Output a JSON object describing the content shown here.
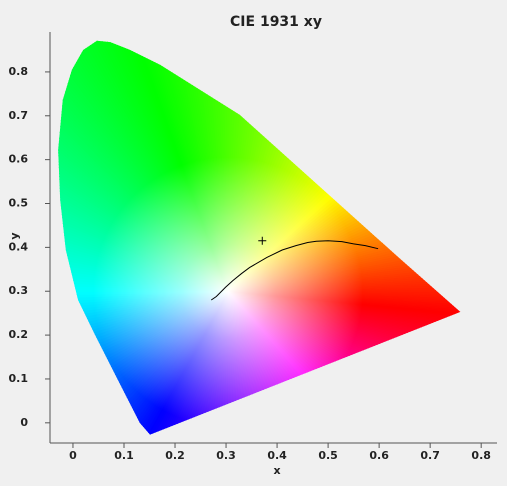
{
  "chart_data": {
    "type": "chromaticity",
    "title": "CIE 1931 xy",
    "x_label": "x",
    "y_label": "y",
    "xlim": [
      -0.045,
      0.831
    ],
    "ylim": [
      -0.046,
      0.891
    ],
    "xticks": [
      0,
      0.1,
      0.2,
      0.3,
      0.4,
      0.5,
      0.6,
      0.7,
      0.8
    ],
    "yticks": [
      0,
      0.1,
      0.2,
      0.3,
      0.4,
      0.5,
      0.6,
      0.7,
      0.8
    ],
    "locus": {
      "x": [
        0.151,
        0.131,
        0.088,
        0.043,
        0.01,
        -0.014,
        -0.025,
        -0.029,
        -0.02,
        -0.002,
        0.02,
        0.047,
        0.073,
        0.112,
        0.171,
        0.249,
        0.327,
        0.504,
        0.641,
        0.759
      ],
      "y": [
        -0.027,
        0.0,
        0.098,
        0.201,
        0.28,
        0.394,
        0.508,
        0.622,
        0.736,
        0.805,
        0.85,
        0.871,
        0.868,
        0.85,
        0.816,
        0.759,
        0.702,
        0.517,
        0.374,
        0.253
      ]
    },
    "planckian_locus": {
      "color": "#000000",
      "x": [
        0.271,
        0.281,
        0.299,
        0.313,
        0.33,
        0.346,
        0.38,
        0.41,
        0.437,
        0.46,
        0.477,
        0.5,
        0.527,
        0.55,
        0.573,
        0.598
      ],
      "y": [
        0.28,
        0.288,
        0.309,
        0.324,
        0.34,
        0.354,
        0.377,
        0.394,
        0.404,
        0.411,
        0.414,
        0.415,
        0.413,
        0.408,
        0.404,
        0.397
      ]
    },
    "white_point": {
      "x": 0.371,
      "y": 0.415,
      "color": "#000000"
    }
  }
}
